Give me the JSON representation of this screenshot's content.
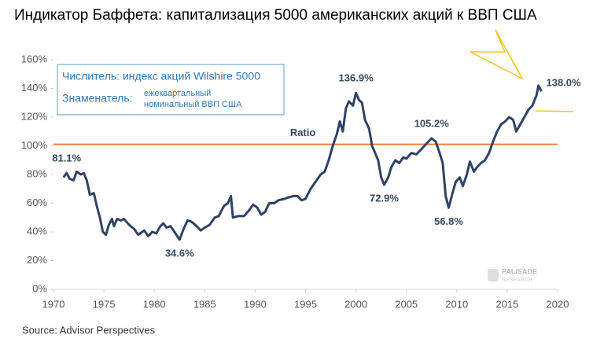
{
  "chart_data": {
    "type": "line",
    "title": "Индикатор Баффета: капитализация 5000 американских акций к ВВП США",
    "source": "Source: Advisor Perspectives",
    "watermark": [
      "PALISADE",
      "RESEARCH"
    ],
    "note": {
      "numerator": "Числитель: индекс акций Wilshire 5000",
      "denominator": "Знаменатель:",
      "denominator_lines": [
        "ежеквартальный",
        "номинальный ВВП США"
      ]
    },
    "reference_line": {
      "value": 101,
      "label": "Ratio",
      "color": "#f07f3c"
    },
    "color": "#2f4363",
    "x": [
      1971.0,
      1971.3,
      1971.6,
      1972.0,
      1972.3,
      1972.7,
      1973.0,
      1973.3,
      1973.6,
      1974.0,
      1974.3,
      1974.6,
      1974.9,
      1975.2,
      1975.5,
      1975.8,
      1976.0,
      1976.3,
      1976.7,
      1977.0,
      1977.5,
      1978.0,
      1978.4,
      1978.8,
      1979.0,
      1979.4,
      1979.8,
      1980.2,
      1980.6,
      1980.9,
      1981.2,
      1981.6,
      1982.0,
      1982.5,
      1982.9,
      1983.3,
      1983.7,
      1984.2,
      1984.6,
      1985.0,
      1985.5,
      1986.0,
      1986.4,
      1986.9,
      1987.3,
      1987.6,
      1987.8,
      1988.3,
      1988.9,
      1989.4,
      1989.8,
      1990.2,
      1990.6,
      1991.0,
      1991.4,
      1991.9,
      1992.3,
      1992.9,
      1993.3,
      1993.8,
      1994.2,
      1994.6,
      1995.0,
      1995.5,
      1996.0,
      1996.5,
      1996.9,
      1997.3,
      1997.7,
      1998.1,
      1998.4,
      1998.7,
      1999.0,
      1999.3,
      1999.7,
      2000.0,
      2000.3,
      2000.6,
      2000.9,
      2001.3,
      2001.6,
      2001.9,
      2002.2,
      2002.5,
      2002.8,
      2003.2,
      2003.5,
      2003.9,
      2004.3,
      2004.7,
      2005.0,
      2005.5,
      2006.0,
      2006.4,
      2006.8,
      2007.2,
      2007.5,
      2007.9,
      2008.3,
      2008.6,
      2008.9,
      2009.2,
      2009.5,
      2009.9,
      2010.3,
      2010.6,
      2011.0,
      2011.3,
      2011.7,
      2012.0,
      2012.4,
      2012.8,
      2013.2,
      2013.6,
      2014.0,
      2014.4,
      2014.8,
      2015.2,
      2015.6,
      2015.9,
      2016.3,
      2016.7,
      2017.1,
      2017.5,
      2017.9,
      2018.1,
      2018.4
    ],
    "values": [
      78,
      81.1,
      77,
      76,
      82,
      80,
      81,
      76,
      66,
      67,
      58,
      50,
      40,
      38,
      45,
      49,
      44,
      49,
      48,
      49,
      45,
      42,
      38,
      40,
      41,
      37,
      40,
      39,
      44,
      46,
      43,
      44,
      40,
      34.6,
      42,
      48,
      47,
      44,
      41,
      43,
      45,
      50,
      51,
      58,
      60,
      65,
      50,
      51,
      51,
      55,
      59,
      57,
      52,
      54,
      60,
      60,
      62,
      63,
      64,
      65,
      65,
      62,
      63,
      70,
      75,
      80,
      82,
      90,
      100,
      108,
      117,
      110,
      126,
      131,
      128,
      136.9,
      132,
      130,
      118,
      112,
      100,
      95,
      90,
      78,
      72.9,
      78,
      85,
      90,
      88,
      92,
      91,
      95,
      94,
      97,
      100,
      103,
      105.2,
      103,
      95,
      88,
      65,
      56.8,
      65,
      75,
      78,
      72,
      80,
      89,
      82,
      85,
      88,
      90,
      95,
      103,
      110,
      115,
      117,
      120,
      118,
      110,
      115,
      120,
      125,
      128,
      135,
      142,
      138.0
    ],
    "value_labels": [
      null,
      "81.1%",
      null,
      null,
      null,
      null,
      null,
      null,
      null,
      null,
      null,
      null,
      null,
      null,
      null,
      null,
      null,
      null,
      null,
      null,
      null,
      null,
      null,
      null,
      null,
      null,
      null,
      null,
      null,
      null,
      null,
      null,
      null,
      "34.6%",
      null,
      null,
      null,
      null,
      null,
      null,
      null,
      null,
      null,
      null,
      null,
      null,
      null,
      null,
      null,
      null,
      null,
      null,
      null,
      null,
      null,
      null,
      null,
      null,
      null,
      null,
      null,
      null,
      null,
      null,
      null,
      null,
      null,
      null,
      null,
      null,
      null,
      null,
      null,
      null,
      null,
      "136.9%",
      null,
      null,
      null,
      null,
      null,
      null,
      null,
      null,
      "72.9%",
      null,
      null,
      null,
      null,
      null,
      null,
      null,
      null,
      null,
      null,
      null,
      "105.2%",
      null,
      null,
      null,
      null,
      "56.8%",
      null,
      null,
      null,
      null,
      null,
      null,
      null,
      null,
      null,
      null,
      null,
      null,
      null,
      null,
      null,
      null,
      null,
      null,
      null,
      null,
      null,
      null,
      null,
      null,
      "138.0%"
    ],
    "xlim": [
      1970,
      2020
    ],
    "ylim": [
      0,
      160
    ],
    "xticks": [
      1970,
      1975,
      1980,
      1985,
      1990,
      1995,
      2000,
      2005,
      2010,
      2015,
      2020
    ],
    "yticks": [
      {
        "value": 0,
        "label": "0%"
      },
      {
        "value": 20,
        "label": "20%"
      },
      {
        "value": 40,
        "label": "40%"
      },
      {
        "value": 60,
        "label": "60%"
      },
      {
        "value": 80,
        "label": "80%"
      },
      {
        "value": 100,
        "label": "100%"
      },
      {
        "value": 120,
        "label": "120%"
      },
      {
        "value": 140,
        "label": "140%"
      },
      {
        "value": 160,
        "label": "160%"
      }
    ]
  }
}
